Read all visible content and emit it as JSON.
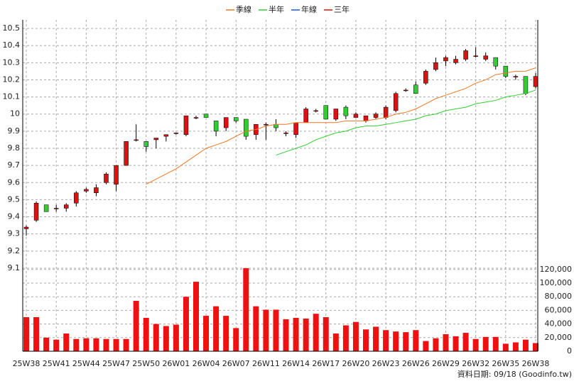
{
  "chart_data": {
    "type": "candlestick",
    "categories": [
      "25W38",
      null,
      null,
      "25W41",
      null,
      null,
      "25W44",
      null,
      null,
      "25W47",
      null,
      null,
      "25W50",
      null,
      null,
      "26W01",
      null,
      null,
      "26W04",
      null,
      null,
      "26W07",
      null,
      null,
      "26W11",
      null,
      null,
      "26W14",
      null,
      null,
      "26W17",
      null,
      null,
      "26W20",
      null,
      null,
      "26W23",
      null,
      null,
      "26W26",
      null,
      null,
      "26W29",
      null,
      null,
      "26W32",
      null,
      null,
      "26W35",
      null,
      null,
      "26W38"
    ],
    "open": [
      9.33,
      9.38,
      9.47,
      9.45,
      9.45,
      9.48,
      9.55,
      9.54,
      9.6,
      9.59,
      9.7,
      9.85,
      9.84,
      9.85,
      9.87,
      9.89,
      9.88,
      9.98,
      10.0,
      9.96,
      9.92,
      9.98,
      9.97,
      9.88,
      9.94,
      9.94,
      9.89,
      9.88,
      9.95,
      10.02,
      10.05,
      9.97,
      10.04,
      9.98,
      9.96,
      9.98,
      9.98,
      10.02,
      10.14,
      10.17,
      10.18,
      10.26,
      10.31,
      10.3,
      10.32,
      10.34,
      10.32,
      10.33,
      10.28,
      10.22,
      10.22,
      10.16
    ],
    "high": [
      9.35,
      9.49,
      9.47,
      9.47,
      9.48,
      9.55,
      9.57,
      9.59,
      9.66,
      9.7,
      9.84,
      9.94,
      9.84,
      9.86,
      9.88,
      9.89,
      9.99,
      9.99,
      10.0,
      9.96,
      9.98,
      9.98,
      9.97,
      9.94,
      9.95,
      9.97,
      9.9,
      9.95,
      10.04,
      10.03,
      10.05,
      10.03,
      10.05,
      10.01,
      9.99,
      10.01,
      10.05,
      10.13,
      10.15,
      10.19,
      10.26,
      10.33,
      10.34,
      10.34,
      10.38,
      10.39,
      10.36,
      10.33,
      10.28,
      10.23,
      10.22,
      10.24
    ],
    "low": [
      9.29,
      9.37,
      9.43,
      9.43,
      9.43,
      9.46,
      9.54,
      9.52,
      9.59,
      9.55,
      9.7,
      9.84,
      9.78,
      9.8,
      9.84,
      9.88,
      9.87,
      9.97,
      9.98,
      9.87,
      9.9,
      9.95,
      9.85,
      9.85,
      9.85,
      9.9,
      9.87,
      9.86,
      9.95,
      10.01,
      9.97,
      9.96,
      9.97,
      9.98,
      9.95,
      9.97,
      9.97,
      10.01,
      10.13,
      10.12,
      10.17,
      10.25,
      10.28,
      10.29,
      10.31,
      10.33,
      10.31,
      10.26,
      10.21,
      10.2,
      10.11,
      10.15
    ],
    "close": [
      9.34,
      9.48,
      9.43,
      9.45,
      9.47,
      9.54,
      9.56,
      9.57,
      9.65,
      9.7,
      9.84,
      9.85,
      9.81,
      9.86,
      9.88,
      9.89,
      9.99,
      9.98,
      9.98,
      9.9,
      9.98,
      9.96,
      9.87,
      9.94,
      9.94,
      9.92,
      9.89,
      9.95,
      10.03,
      10.02,
      9.97,
      10.03,
      9.99,
      10.0,
      9.99,
      10.0,
      10.04,
      10.12,
      10.14,
      10.12,
      10.25,
      10.3,
      10.33,
      10.32,
      10.37,
      10.34,
      10.34,
      10.28,
      10.22,
      10.22,
      10.12,
      10.22
    ],
    "up_color": "#dd1111",
    "down_color": "#33cc33",
    "volume": [
      50000,
      50000,
      20000,
      17000,
      26000,
      18000,
      19000,
      19000,
      18000,
      18000,
      18000,
      74000,
      49000,
      40000,
      37000,
      39000,
      80000,
      102000,
      52000,
      66000,
      52000,
      34000,
      122000,
      66000,
      61000,
      61000,
      47000,
      49000,
      48000,
      55000,
      50000,
      26000,
      38000,
      43000,
      32000,
      36000,
      31000,
      29000,
      28000,
      31000,
      15000,
      19000,
      25000,
      22000,
      27000,
      18000,
      21000,
      21000,
      11000,
      13000,
      17000,
      12000
    ],
    "volume_color": "#ee1111",
    "series": [
      {
        "name": "季線",
        "color": "#ee7722",
        "values": [
          null,
          null,
          null,
          null,
          null,
          null,
          null,
          null,
          null,
          null,
          null,
          null,
          9.59,
          9.62,
          9.65,
          9.68,
          9.72,
          9.76,
          9.8,
          9.82,
          9.84,
          9.87,
          9.9,
          9.91,
          9.93,
          9.94,
          9.94,
          9.95,
          9.95,
          9.95,
          9.95,
          9.95,
          9.96,
          9.96,
          9.96,
          9.97,
          9.98,
          10.0,
          10.01,
          10.03,
          10.06,
          10.09,
          10.11,
          10.13,
          10.15,
          10.18,
          10.2,
          10.23,
          10.24,
          10.25,
          10.25,
          10.27
        ]
      },
      {
        "name": "半年",
        "color": "#33cc33",
        "values": [
          null,
          null,
          null,
          null,
          null,
          null,
          null,
          null,
          null,
          null,
          null,
          null,
          null,
          null,
          null,
          null,
          null,
          null,
          null,
          null,
          null,
          null,
          null,
          null,
          null,
          9.76,
          9.78,
          9.8,
          9.82,
          9.85,
          9.87,
          9.89,
          9.9,
          9.92,
          9.93,
          9.93,
          9.94,
          9.95,
          9.96,
          9.97,
          9.99,
          10.0,
          10.02,
          10.03,
          10.04,
          10.06,
          10.07,
          10.08,
          10.1,
          10.11,
          10.12,
          10.14
        ]
      },
      {
        "name": "年線",
        "color": "#2255dd",
        "values": [
          null,
          null,
          null,
          null,
          null,
          null,
          null,
          null,
          null,
          null,
          null,
          null,
          null,
          null,
          null,
          null,
          null,
          null,
          null,
          null,
          null,
          null,
          null,
          null,
          null,
          null,
          null,
          null,
          null,
          null,
          null,
          null,
          null,
          null,
          null,
          null,
          null,
          null,
          null,
          null,
          null,
          null,
          null,
          null,
          null,
          null,
          null,
          null,
          null,
          null,
          null,
          null
        ]
      },
      {
        "name": "三年",
        "color": "#dd1111",
        "values": [
          null,
          null,
          null,
          null,
          null,
          null,
          null,
          null,
          null,
          null,
          null,
          null,
          null,
          null,
          null,
          null,
          null,
          null,
          null,
          null,
          null,
          null,
          null,
          null,
          null,
          null,
          null,
          null,
          null,
          null,
          null,
          null,
          null,
          null,
          null,
          null,
          null,
          null,
          null,
          null,
          null,
          null,
          null,
          null,
          null,
          null,
          null,
          null,
          null,
          null,
          null,
          null
        ]
      }
    ],
    "ylim": [
      8.615,
      10.55
    ],
    "yticks": [
      9.1,
      9.2,
      9.3,
      9.4,
      9.5,
      9.6,
      9.7,
      9.8,
      9.9,
      10,
      10.1,
      10.2,
      10.3,
      10.4,
      10.5
    ],
    "y2lim": [
      0,
      486458
    ],
    "y2ticks": [
      0,
      {
        "value": 20000,
        "label": "20,000"
      },
      {
        "value": 40000,
        "label": "40,000"
      },
      {
        "value": 60000,
        "label": "60,000"
      },
      {
        "value": 80000,
        "label": "80,000"
      },
      {
        "value": 100000,
        "label": "100,000"
      },
      {
        "value": 120000,
        "label": "120,000"
      }
    ],
    "grid": true,
    "footnote": "資料日期: 09/18 (Goodinfo.tw)"
  }
}
